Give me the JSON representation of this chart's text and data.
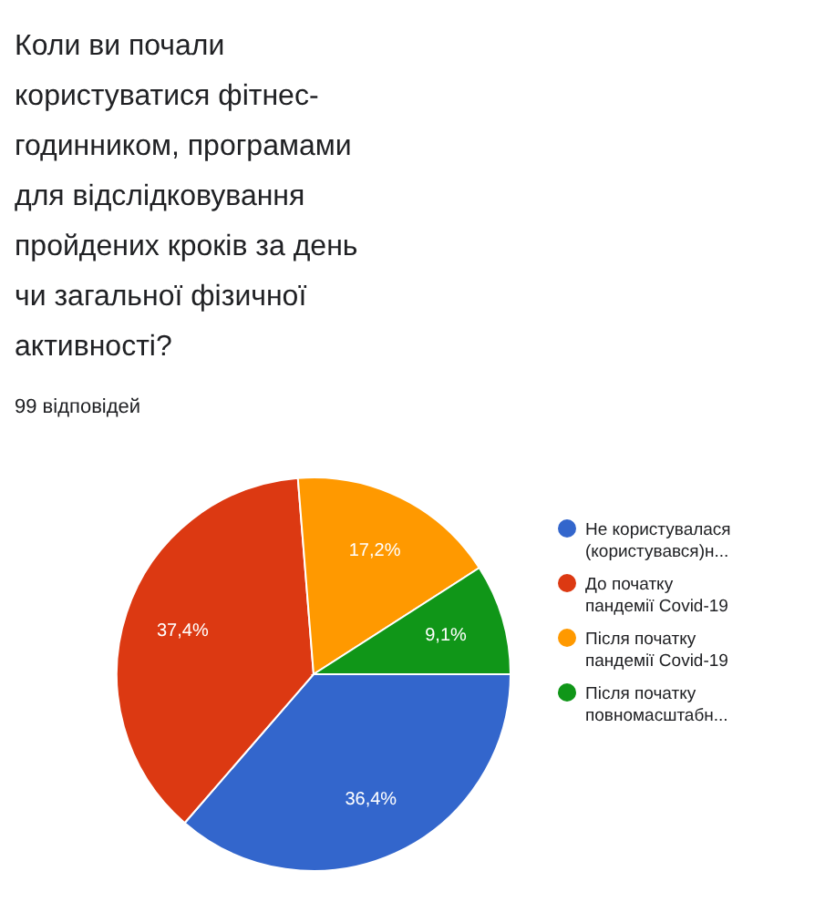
{
  "chart_data": {
    "type": "pie",
    "title": "Коли ви почали користуватися фітнес-годинником, програмами для відслідковування пройдених кроків за день чи загальної фізичної активності?",
    "subtitle": "99 відповідей",
    "categories": [
      "Не користувалася (користувався)н...",
      "До початку пандемії Covid-19",
      "Після початку пандемії Covid-19",
      "Після початку повномасштабн..."
    ],
    "values": [
      36.4,
      37.4,
      17.2,
      9.1
    ],
    "colors": [
      "#3366cc",
      "#dc3912",
      "#ff9900",
      "#109618"
    ],
    "value_labels": [
      "36,4%",
      "37,4%",
      "17,2%",
      "9,1%"
    ],
    "legend": "right"
  }
}
